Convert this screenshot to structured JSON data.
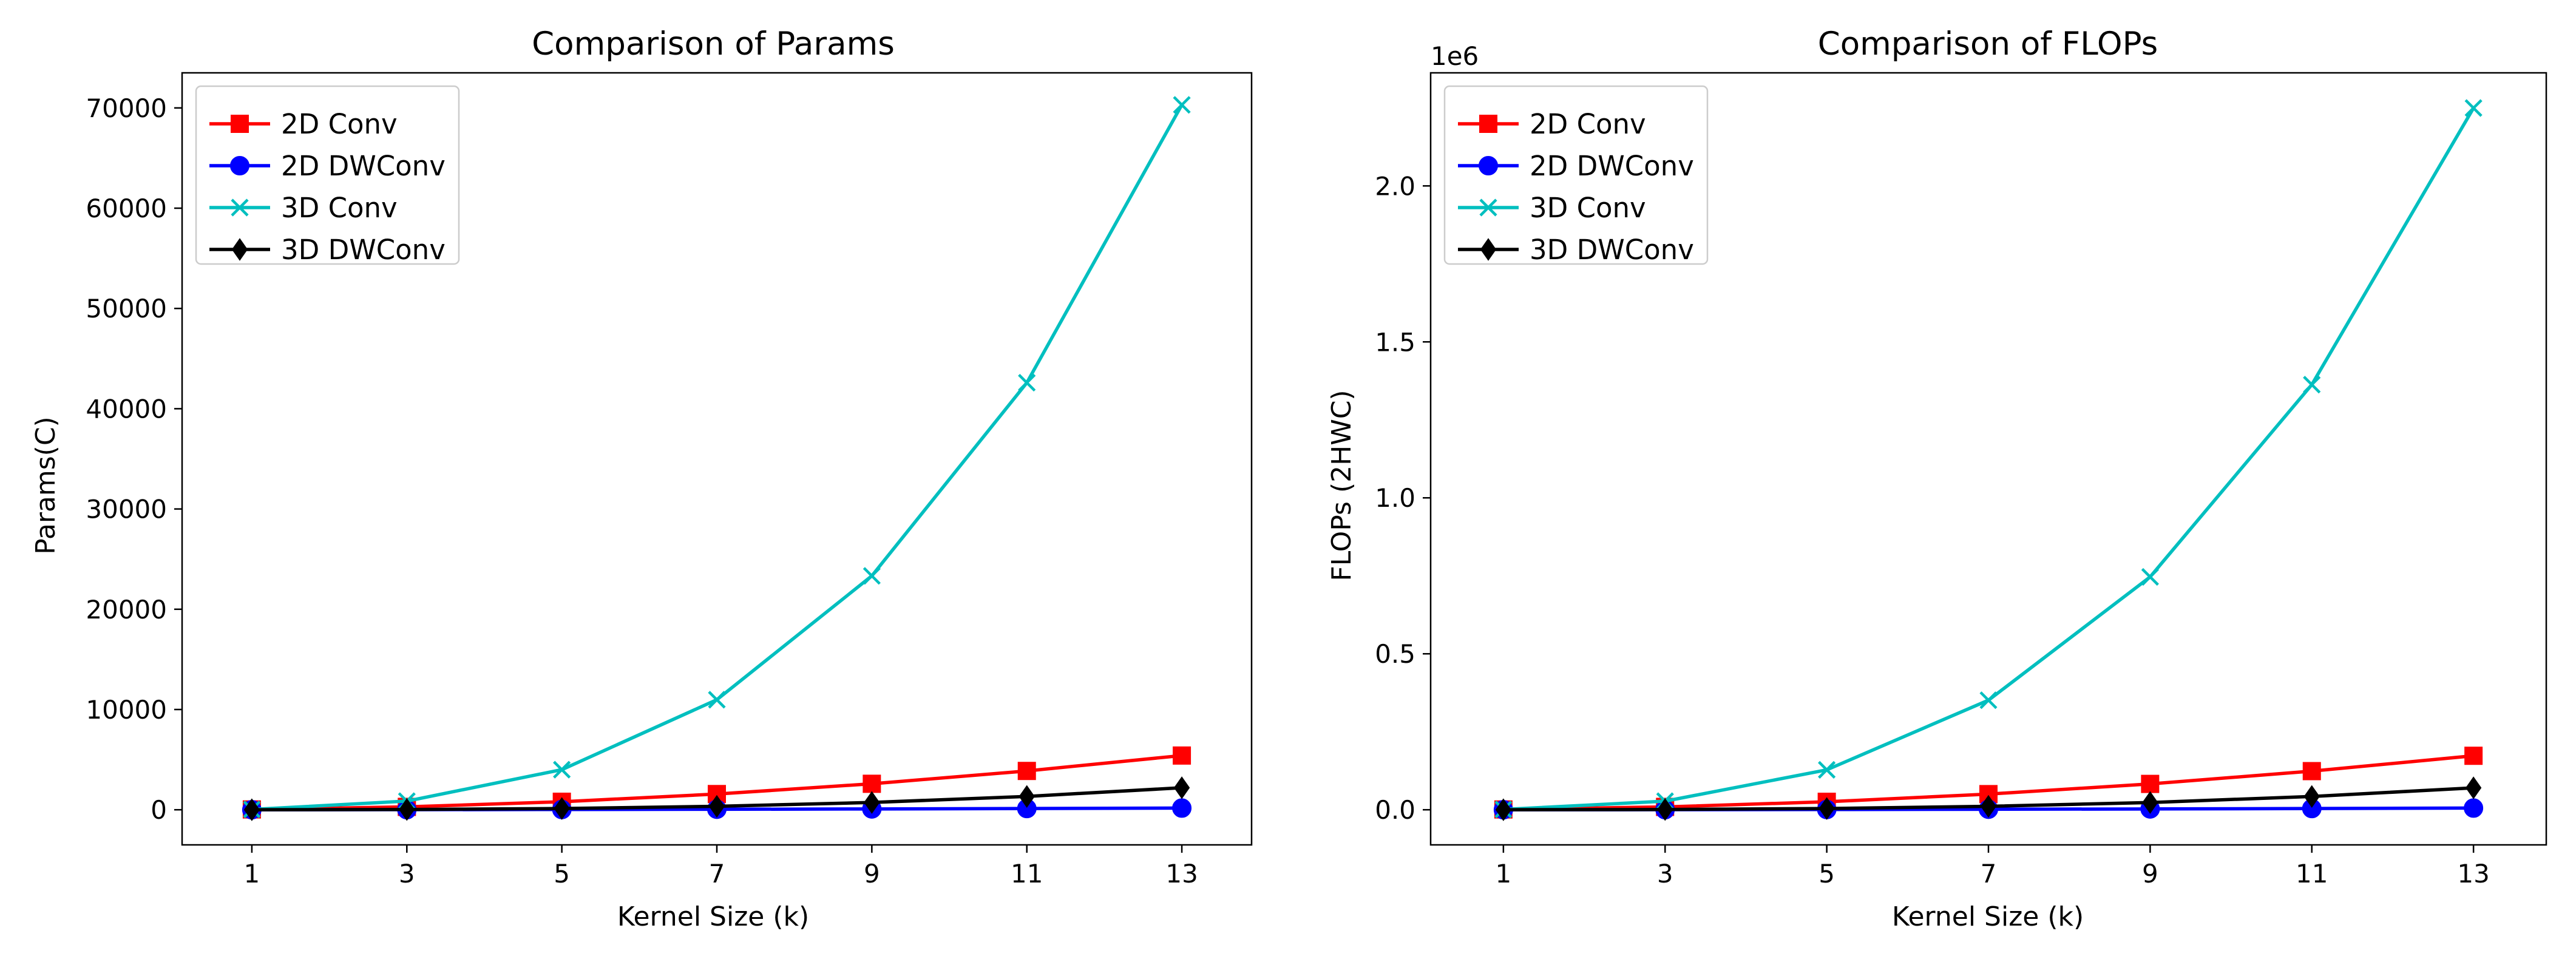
{
  "chart_data": [
    {
      "type": "line",
      "title": "Comparison of Params",
      "xlabel": "Kernel Size (k)",
      "ylabel": "Params(C)",
      "x": [
        1,
        3,
        5,
        7,
        9,
        11,
        13
      ],
      "xticks": [
        "1",
        "3",
        "5",
        "7",
        "9",
        "11",
        "13"
      ],
      "xlim": [
        0.1,
        13.9
      ],
      "ylim": [
        -3500,
        73500
      ],
      "yticks": [
        0,
        10000,
        20000,
        30000,
        40000,
        50000,
        60000,
        70000
      ],
      "ytick_labels": [
        "0",
        "10000",
        "20000",
        "30000",
        "40000",
        "50000",
        "60000",
        "70000"
      ],
      "offset_text": "",
      "legend_loc": "upper-left",
      "series": [
        {
          "name": "2D Conv",
          "color": "#ff0000",
          "marker": "square",
          "values": [
            32,
            288,
            800,
            1568,
            2592,
            3872,
            5408
          ]
        },
        {
          "name": "2D DWConv",
          "color": "#0000ff",
          "marker": "circle",
          "values": [
            1,
            9,
            25,
            49,
            81,
            121,
            169
          ]
        },
        {
          "name": "3D Conv",
          "color": "#00bfbf",
          "marker": "x",
          "values": [
            32,
            864,
            4000,
            10976,
            23328,
            42592,
            70304
          ]
        },
        {
          "name": "3D DWConv",
          "color": "#000000",
          "marker": "diamond",
          "values": [
            1,
            27,
            125,
            343,
            729,
            1331,
            2197
          ]
        }
      ]
    },
    {
      "type": "line",
      "title": "Comparison of FLOPs",
      "xlabel": "Kernel Size (k)",
      "ylabel": "FLOPs (2HWC)",
      "x": [
        1,
        3,
        5,
        7,
        9,
        11,
        13
      ],
      "xticks": [
        "1",
        "3",
        "5",
        "7",
        "9",
        "11",
        "13"
      ],
      "xlim": [
        0.1,
        13.9
      ],
      "ylim": [
        -0.1125,
        2.3625
      ],
      "yticks": [
        0,
        0.5,
        1.0,
        1.5,
        2.0
      ],
      "ytick_labels": [
        "0.0",
        "0.5",
        "1.0",
        "1.5",
        "2.0"
      ],
      "offset_text": "1e6",
      "legend_loc": "upper-left",
      "series": [
        {
          "name": "2D Conv",
          "color": "#ff0000",
          "marker": "square",
          "values": [
            0.001,
            0.0092,
            0.0256,
            0.0502,
            0.0829,
            0.1239,
            0.1731
          ]
        },
        {
          "name": "2D DWConv",
          "color": "#0000ff",
          "marker": "circle",
          "values": [
            3e-05,
            0.0003,
            0.0008,
            0.0016,
            0.0026,
            0.0039,
            0.0054
          ]
        },
        {
          "name": "3D Conv",
          "color": "#00bfbf",
          "marker": "x",
          "values": [
            0.001,
            0.0276,
            0.128,
            0.3512,
            0.7465,
            1.3629,
            2.2497
          ]
        },
        {
          "name": "3D DWConv",
          "color": "#000000",
          "marker": "diamond",
          "values": [
            3e-05,
            0.0009,
            0.004,
            0.011,
            0.0233,
            0.0426,
            0.0703
          ]
        }
      ]
    }
  ]
}
